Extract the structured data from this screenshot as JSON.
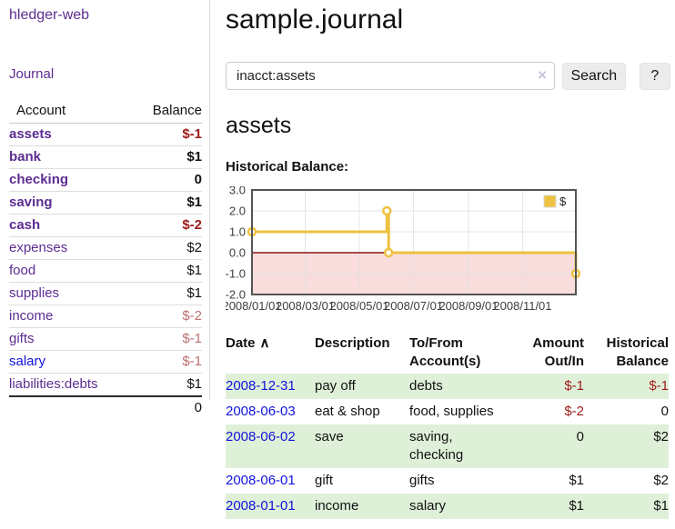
{
  "app": {
    "brand": "hledger-web"
  },
  "sidebar": {
    "journal_link": "Journal",
    "accounts": {
      "header": {
        "account": "Account",
        "balance": "Balance"
      },
      "rows": [
        {
          "name": "assets",
          "depth": 1,
          "in_query": true,
          "visited": true,
          "balance": "$-1",
          "negative": true
        },
        {
          "name": "bank",
          "depth": 2,
          "in_query": true,
          "visited": true,
          "balance": "$1",
          "negative": false
        },
        {
          "name": "checking",
          "depth": 3,
          "in_query": true,
          "visited": true,
          "balance": "0",
          "negative": false
        },
        {
          "name": "saving",
          "depth": 3,
          "in_query": true,
          "visited": true,
          "balance": "$1",
          "negative": false
        },
        {
          "name": "cash",
          "depth": 2,
          "in_query": true,
          "visited": true,
          "balance": "$-2",
          "negative": true
        },
        {
          "name": "expenses",
          "depth": 1,
          "in_query": false,
          "visited": true,
          "balance": "$2",
          "negative": false
        },
        {
          "name": "food",
          "depth": 2,
          "in_query": false,
          "visited": true,
          "balance": "$1",
          "negative": false
        },
        {
          "name": "supplies",
          "depth": 2,
          "in_query": false,
          "visited": true,
          "balance": "$1",
          "negative": false
        },
        {
          "name": "income",
          "depth": 1,
          "in_query": false,
          "visited": true,
          "balance": "$-2",
          "negative": true
        },
        {
          "name": "gifts",
          "depth": 2,
          "in_query": false,
          "visited": true,
          "balance": "$-1",
          "negative": true
        },
        {
          "name": "salary",
          "depth": 2,
          "in_query": false,
          "visited": false,
          "balance": "$-1",
          "negative": true
        },
        {
          "name": "liabilities:debts",
          "depth": 1,
          "in_query": false,
          "visited": true,
          "balance": "$1",
          "negative": false
        }
      ],
      "total": "0"
    }
  },
  "main": {
    "title": "sample.journal",
    "search": {
      "value": "inacct:assets",
      "clear_icon": "×",
      "search_button": "Search",
      "help_button": "?"
    },
    "heading": "assets",
    "chart_label": "Historical Balance:",
    "register": {
      "headers": {
        "date": "Date",
        "sort_icon": "∧",
        "description": "Description",
        "accounts": "To/From Account(s)",
        "amount": "Amount Out/In",
        "balance": "Historical Balance"
      },
      "rows": [
        {
          "date": "2008-12-31",
          "description": "pay off",
          "accounts": "debts",
          "amount": "$-1",
          "amount_negative": true,
          "balance": "$-1",
          "balance_negative": true
        },
        {
          "date": "2008-06-03",
          "description": "eat & shop",
          "accounts": "food, supplies",
          "amount": "$-2",
          "amount_negative": true,
          "balance": "0",
          "balance_negative": false
        },
        {
          "date": "2008-06-02",
          "description": "save",
          "accounts": "saving, checking",
          "amount": "0",
          "amount_negative": false,
          "balance": "$2",
          "balance_negative": false
        },
        {
          "date": "2008-06-01",
          "description": "gift",
          "accounts": "gifts",
          "amount": "$1",
          "amount_negative": false,
          "balance": "$2",
          "balance_negative": false
        },
        {
          "date": "2008-01-01",
          "description": "income",
          "accounts": "salary",
          "amount": "$1",
          "amount_negative": false,
          "balance": "$1",
          "balance_negative": false
        }
      ]
    }
  },
  "chart_data": {
    "type": "line",
    "title": "Historical Balance:",
    "legend": {
      "label": "$",
      "position": "top-right"
    },
    "series": [
      {
        "name": "$",
        "color": "#edc240",
        "points": [
          {
            "date": "2008-01-01",
            "day": 0,
            "value": 1
          },
          {
            "date": "2008-06-01",
            "day": 152,
            "value": 2
          },
          {
            "date": "2008-06-03",
            "day": 154,
            "value": 0
          },
          {
            "date": "2008-12-31",
            "day": 365,
            "value": -1
          }
        ],
        "step": true
      }
    ],
    "x_range_days": [
      0,
      365
    ],
    "ylim": [
      -2,
      3
    ],
    "x_ticks": [
      {
        "day": 0,
        "label": "2008/01/01"
      },
      {
        "day": 60,
        "label": "2008/03/01"
      },
      {
        "day": 121,
        "label": "2008/05/01"
      },
      {
        "day": 182,
        "label": "2008/07/01"
      },
      {
        "day": 244,
        "label": "2008/09/01"
      },
      {
        "day": 305,
        "label": "2008/11/01"
      }
    ],
    "y_ticks": [
      {
        "v": -2,
        "label": "-2.0"
      },
      {
        "v": -1,
        "label": "-1.0"
      },
      {
        "v": 0,
        "label": "0.0"
      },
      {
        "v": 1,
        "label": "1.0"
      },
      {
        "v": 2,
        "label": "2.0"
      },
      {
        "v": 3,
        "label": "3.0"
      }
    ],
    "grid": true,
    "colors": {
      "border": "#545454",
      "gridline": "#e0e0e0",
      "zero_line": "#8b1515",
      "negative_region_fill": "#f9dcdc",
      "tick_text": "#3d3d3d",
      "marker_fill": "#ffffff"
    }
  }
}
